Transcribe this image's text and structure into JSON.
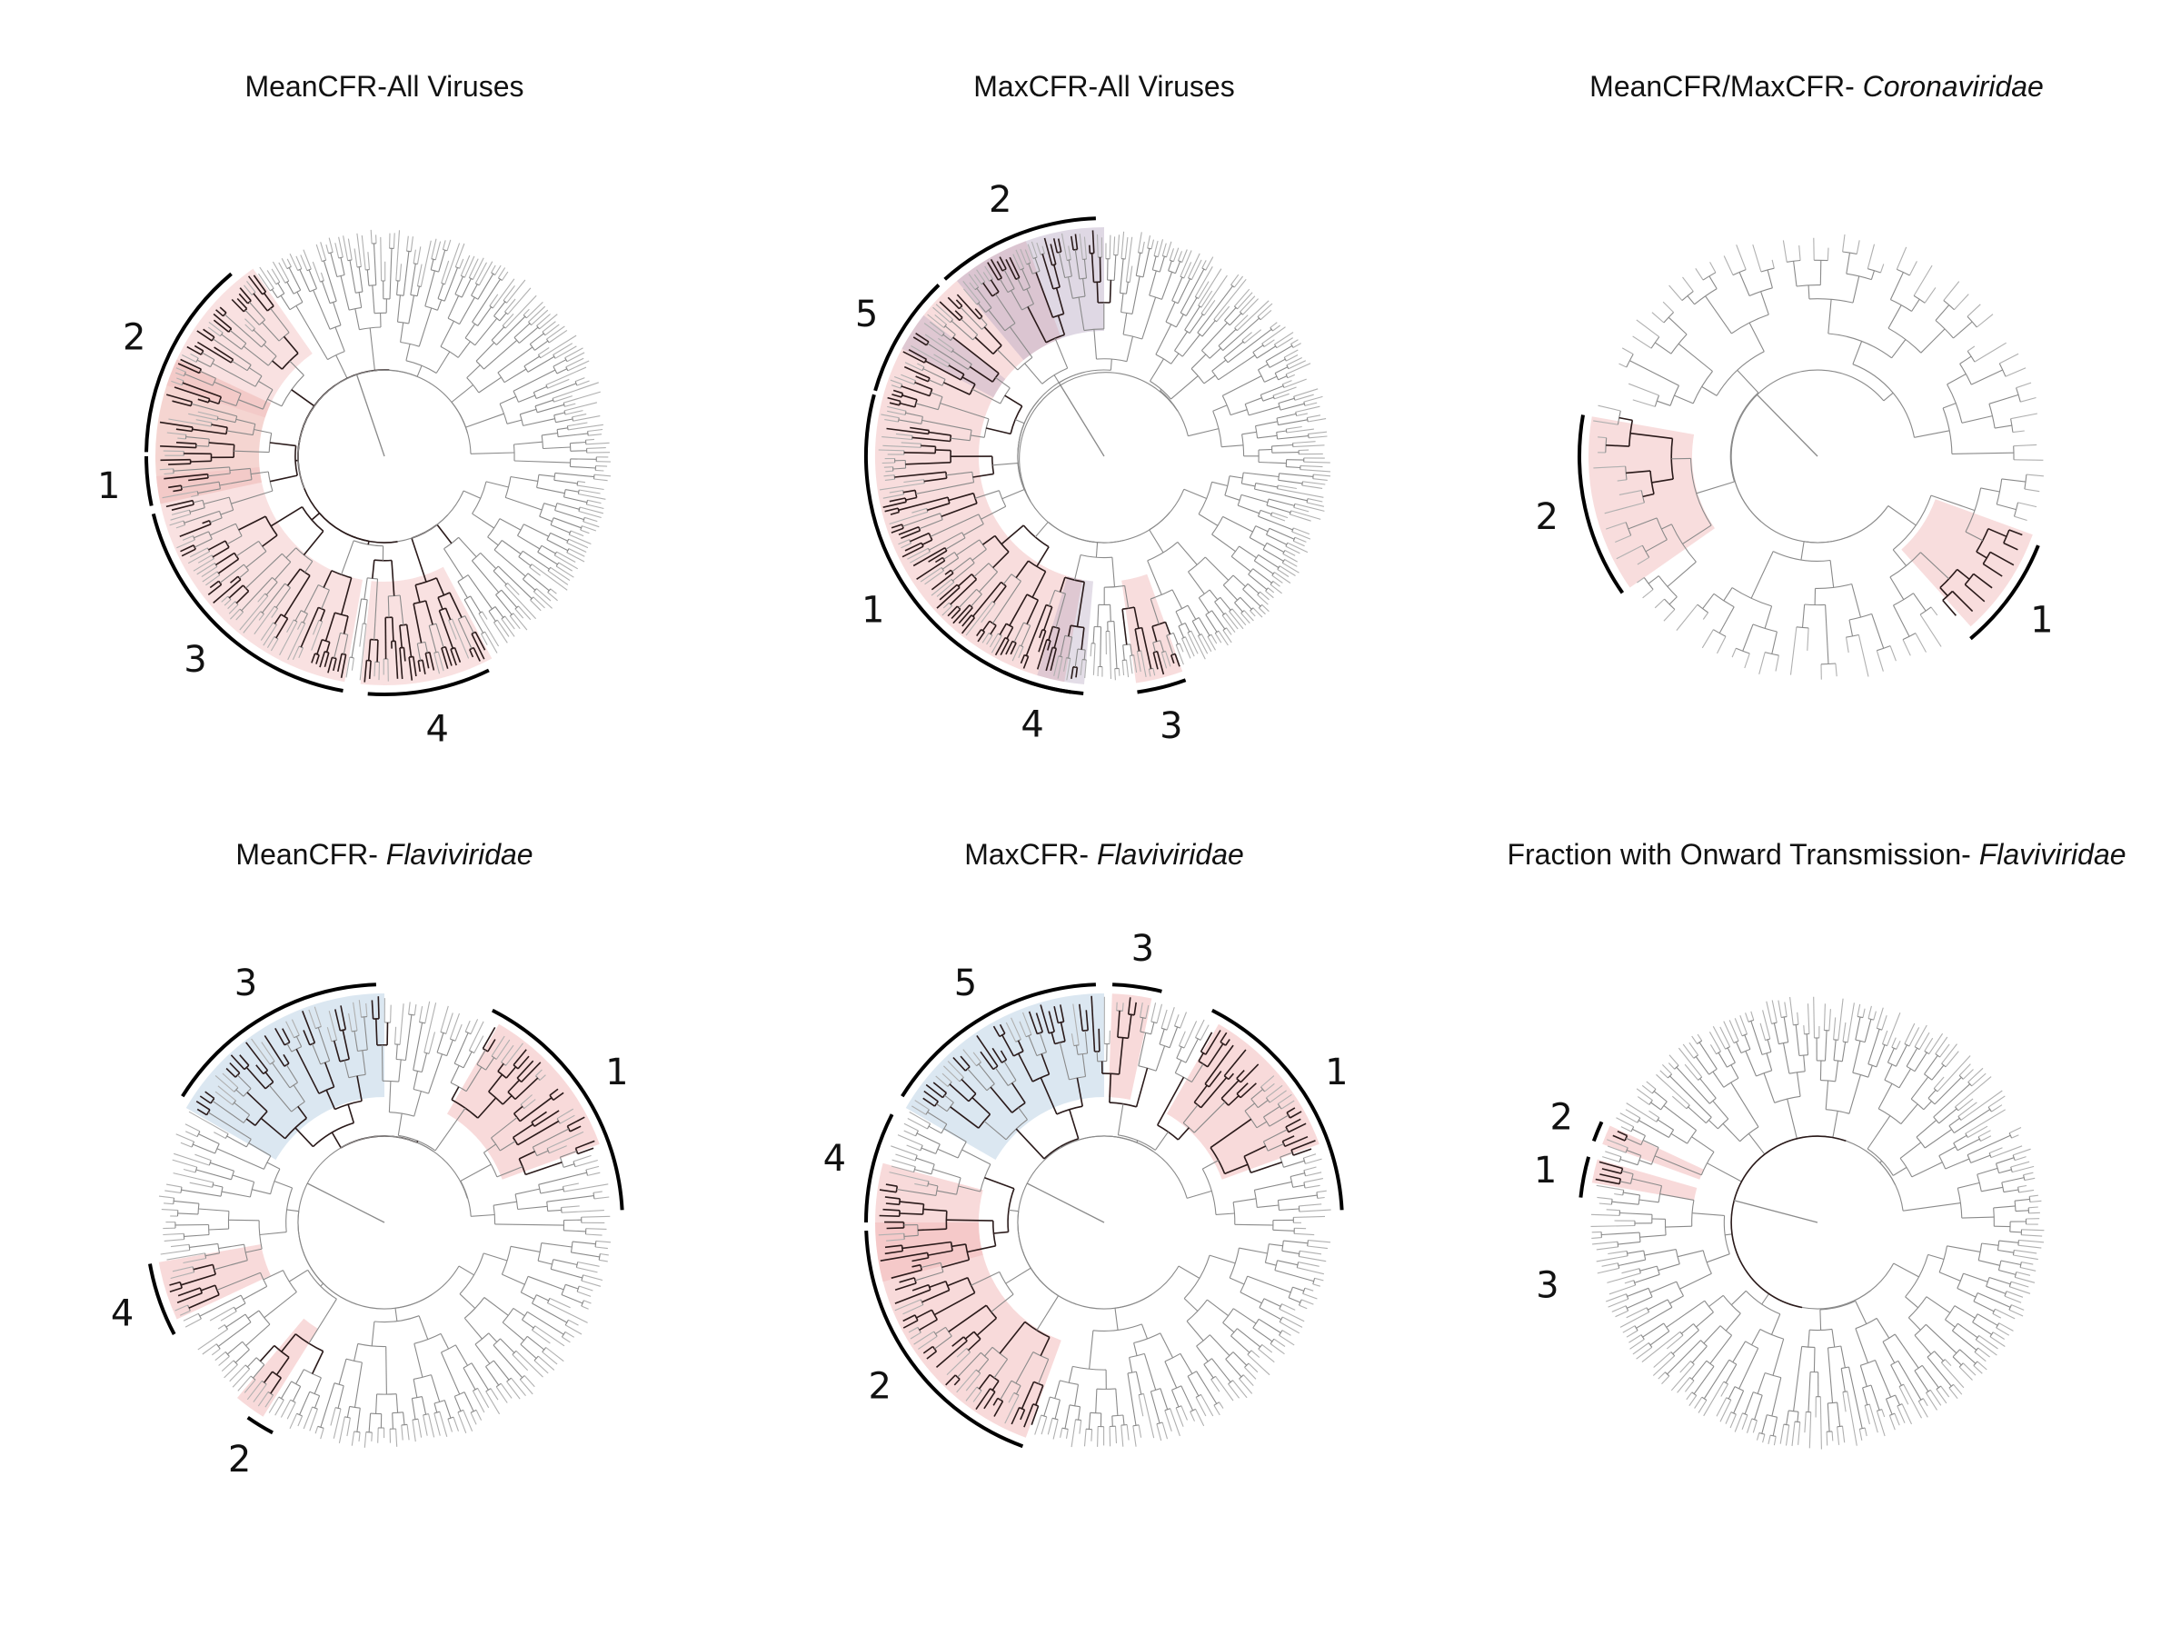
{
  "panels": [
    {
      "title": "MeanCFR-All Viruses",
      "title_italic": "",
      "clades": [
        {
          "label": "1",
          "fill": "#e9a19a",
          "opacity": 0.45,
          "a1": 168,
          "a2": 205
        },
        {
          "label": "2",
          "fill": "#f2bcbc",
          "opacity": 0.45,
          "a1": 198,
          "a2": 235
        },
        {
          "label": "3",
          "fill": "#f2bcbc",
          "opacity": 0.45,
          "a1": 100,
          "a2": 175
        },
        {
          "label": "4",
          "fill": "#f2bcbc",
          "opacity": 0.45,
          "a1": 62,
          "a2": 96
        }
      ],
      "brackets": [
        {
          "label": "1",
          "a1": 168,
          "a2": 180
        },
        {
          "label": "2",
          "a1": 181,
          "a2": 230
        },
        {
          "label": "3",
          "a1": 100,
          "a2": 166
        },
        {
          "label": "4",
          "a1": 64,
          "a2": 94
        }
      ]
    },
    {
      "title": "MaxCFR-All Viruses",
      "title_italic": "",
      "clades": [
        {
          "label": "1",
          "fill": "#f2bcbc",
          "opacity": 0.5,
          "a1": 100,
          "a2": 250
        },
        {
          "label": "2",
          "fill": "#b9a9c4",
          "opacity": 0.45,
          "a1": 230,
          "a2": 270
        },
        {
          "label": "3",
          "fill": "#f2bcbc",
          "opacity": 0.5,
          "a1": 70,
          "a2": 82
        },
        {
          "label": "4",
          "fill": "#b9a9c4",
          "opacity": 0.4,
          "a1": 95,
          "a2": 107
        },
        {
          "label": "5",
          "fill": "#b9a9c4",
          "opacity": 0.4,
          "a1": 208,
          "a2": 218
        }
      ],
      "brackets": [
        {
          "label": "1",
          "a1": 98,
          "a2": 195
        },
        {
          "label": "2",
          "a1": 228,
          "a2": 268
        },
        {
          "label": "3",
          "a1": 70,
          "a2": 82
        },
        {
          "label": "4",
          "a1": 95,
          "a2": 115
        },
        {
          "label": "5",
          "a1": 196,
          "a2": 226
        }
      ]
    },
    {
      "title": "MeanCFR/MaxCFR- ",
      "title_italic": "Coronaviridae",
      "clades": [
        {
          "label": "1",
          "fill": "#f2bcbc",
          "opacity": 0.5,
          "a1": 20,
          "a2": 48
        },
        {
          "label": "2",
          "fill": "#f2bcbc",
          "opacity": 0.5,
          "a1": 145,
          "a2": 190
        }
      ],
      "brackets": [
        {
          "label": "1",
          "a1": 22,
          "a2": 50
        },
        {
          "label": "2",
          "a1": 145,
          "a2": 190
        }
      ]
    },
    {
      "title": "MeanCFR- ",
      "title_italic": "Flaviviridae",
      "clades": [
        {
          "label": "1",
          "fill": "#f2bcbc",
          "opacity": 0.55,
          "a1": 300,
          "a2": 340
        },
        {
          "label": "2",
          "fill": "#f2bcbc",
          "opacity": 0.55,
          "a1": 122,
          "a2": 130
        },
        {
          "label": "3",
          "fill": "#b8cfe3",
          "opacity": 0.5,
          "a1": 210,
          "a2": 270
        },
        {
          "label": "4",
          "fill": "#f2bcbc",
          "opacity": 0.55,
          "a1": 155,
          "a2": 170
        }
      ],
      "brackets": [
        {
          "label": "1",
          "a1": 297,
          "a2": 357
        },
        {
          "label": "2",
          "a1": 118,
          "a2": 125
        },
        {
          "label": "3",
          "a1": 212,
          "a2": 268
        },
        {
          "label": "4",
          "a1": 152,
          "a2": 170
        }
      ]
    },
    {
      "title": "MaxCFR- ",
      "title_italic": "Flaviviridae",
      "clades": [
        {
          "label": "1",
          "fill": "#f2bcbc",
          "opacity": 0.55,
          "a1": 300,
          "a2": 340
        },
        {
          "label": "2",
          "fill": "#f2bcbc",
          "opacity": 0.55,
          "a1": 110,
          "a2": 180
        },
        {
          "label": "3",
          "fill": "#f2bcbc",
          "opacity": 0.55,
          "a1": 272,
          "a2": 282
        },
        {
          "label": "4",
          "fill": "#f2bcbc",
          "opacity": 0.55,
          "a1": 165,
          "a2": 195
        },
        {
          "label": "5",
          "fill": "#b8cfe3",
          "opacity": 0.5,
          "a1": 210,
          "a2": 270
        }
      ],
      "brackets": [
        {
          "label": "1",
          "a1": 297,
          "a2": 357
        },
        {
          "label": "2",
          "a1": 110,
          "a2": 178
        },
        {
          "label": "3",
          "a1": 272,
          "a2": 284
        },
        {
          "label": "4",
          "a1": 180,
          "a2": 207
        },
        {
          "label": "5",
          "a1": 212,
          "a2": 268
        }
      ]
    },
    {
      "title": "Fraction with Onward Transmission- ",
      "title_italic": "Flaviviridae",
      "clades": [
        {
          "label": "1",
          "fill": "#f2bcbc",
          "opacity": 0.55,
          "a1": 190,
          "a2": 196
        },
        {
          "label": "2",
          "fill": "#f2bcbc",
          "opacity": 0.55,
          "a1": 200,
          "a2": 205
        }
      ],
      "brackets": [
        {
          "label": "1",
          "a1": 186,
          "a2": 196
        },
        {
          "label": "2",
          "a1": 200,
          "a2": 205
        }
      ]
    }
  ],
  "extra_labels": [
    {
      "panel": 5,
      "label": "3"
    }
  ]
}
